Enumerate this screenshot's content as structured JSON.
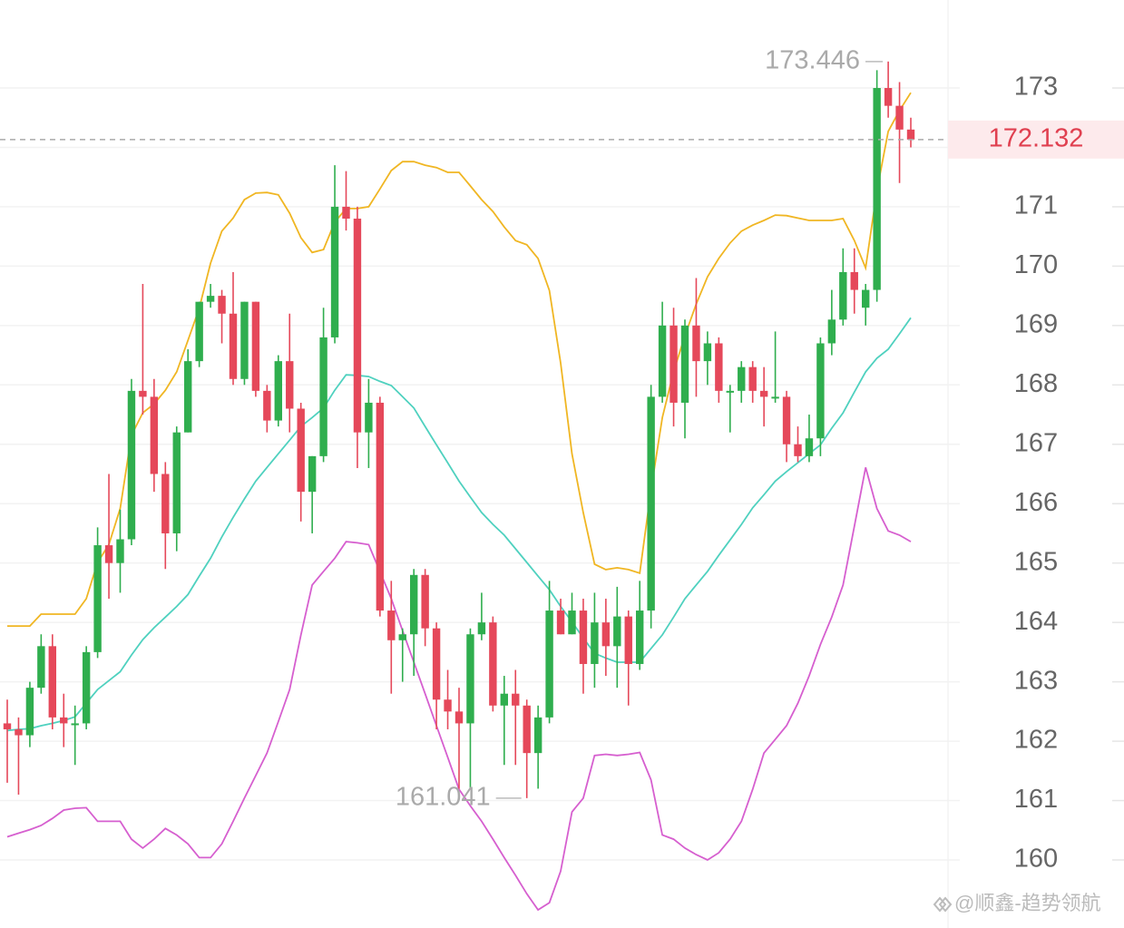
{
  "chart_data": {
    "type": "candlestick",
    "ylim": [
      158.854,
      174.482
    ],
    "yticks": [
      160,
      161,
      162,
      163,
      164,
      165,
      166,
      167,
      168,
      169,
      170,
      171,
      172,
      173
    ],
    "grid": true,
    "up_color": "#2fae4e",
    "down_color": "#e5485a",
    "open": [
      162.3,
      162.2,
      162.1,
      162.9,
      163.6,
      162.4,
      162.3,
      162.3,
      163.5,
      165.3,
      165.0,
      165.4,
      167.9,
      167.8,
      166.5,
      165.5,
      167.2,
      168.4,
      169.4,
      169.5,
      169.2,
      168.1,
      169.4,
      167.9,
      167.4,
      168.4,
      167.6,
      166.2,
      166.8,
      168.8,
      171.0,
      170.8,
      167.2,
      167.7,
      164.2,
      163.7,
      163.8,
      164.8,
      163.9,
      162.7,
      162.5,
      162.3,
      163.8,
      164.0,
      162.6,
      162.8,
      162.6,
      161.8,
      162.4,
      164.2,
      163.8,
      164.2,
      163.3,
      164.0,
      163.6,
      164.1,
      163.3,
      164.2,
      167.8,
      169.0,
      167.7,
      169.0,
      168.4,
      168.7,
      167.9,
      167.9,
      168.3,
      167.9,
      167.8,
      167.8,
      167.0,
      166.8,
      167.1,
      168.7,
      169.1,
      169.9,
      169.3,
      169.6,
      173.0,
      172.7,
      172.3
    ],
    "high": [
      162.7,
      162.4,
      163.0,
      163.8,
      163.8,
      162.8,
      162.6,
      163.6,
      165.6,
      166.5,
      165.9,
      168.1,
      169.7,
      168.1,
      166.7,
      167.3,
      168.6,
      169.4,
      169.7,
      169.6,
      169.9,
      169.4,
      169.4,
      168.0,
      168.5,
      169.2,
      167.7,
      166.8,
      169.3,
      171.7,
      171.6,
      171.0,
      168.1,
      167.8,
      164.7,
      163.9,
      164.9,
      164.9,
      164.0,
      163.2,
      162.9,
      163.9,
      164.5,
      164.1,
      163.1,
      163.2,
      162.7,
      162.6,
      164.7,
      164.4,
      164.5,
      164.4,
      164.5,
      164.4,
      164.6,
      164.2,
      164.7,
      168.0,
      169.4,
      169.3,
      169.1,
      169.8,
      168.9,
      168.8,
      168.0,
      168.4,
      168.4,
      168.3,
      168.9,
      167.9,
      167.3,
      167.5,
      168.8,
      169.6,
      170.3,
      170.3,
      169.7,
      173.3,
      173.446,
      173.1,
      172.5
    ],
    "low": [
      161.3,
      161.1,
      161.9,
      162.8,
      162.2,
      161.9,
      161.6,
      162.2,
      163.4,
      164.4,
      164.5,
      165.3,
      167.5,
      166.2,
      164.9,
      165.2,
      167.2,
      168.3,
      169.3,
      168.7,
      168.0,
      168.0,
      167.8,
      167.2,
      167.3,
      167.2,
      165.7,
      165.5,
      166.7,
      168.7,
      170.6,
      166.6,
      166.6,
      164.1,
      162.8,
      163.0,
      163.1,
      163.6,
      162.2,
      162.2,
      161.2,
      161.2,
      163.7,
      162.5,
      161.6,
      161.6,
      161.041,
      161.2,
      162.3,
      163.8,
      163.8,
      162.8,
      162.9,
      163.1,
      162.9,
      162.6,
      163.2,
      163.9,
      167.7,
      167.3,
      167.1,
      167.8,
      168.0,
      167.7,
      167.2,
      167.7,
      167.7,
      167.3,
      167.7,
      166.7,
      166.7,
      166.7,
      166.8,
      168.5,
      169.0,
      169.2,
      169.0,
      169.4,
      172.5,
      171.4,
      172.0
    ],
    "close": [
      162.2,
      162.1,
      162.9,
      163.6,
      162.4,
      162.3,
      162.3,
      163.5,
      165.3,
      165.0,
      165.4,
      167.9,
      167.8,
      166.5,
      165.5,
      167.2,
      168.4,
      169.4,
      169.5,
      169.2,
      168.1,
      169.4,
      167.9,
      167.4,
      168.4,
      167.6,
      166.2,
      166.8,
      168.8,
      171.0,
      170.8,
      167.2,
      167.7,
      164.2,
      163.7,
      163.8,
      164.8,
      163.9,
      162.7,
      162.5,
      162.3,
      163.8,
      164.0,
      162.6,
      162.8,
      162.6,
      161.8,
      162.4,
      164.2,
      163.8,
      164.2,
      163.3,
      164.0,
      163.6,
      164.1,
      163.3,
      164.2,
      167.8,
      169.0,
      167.7,
      169.0,
      168.4,
      168.7,
      167.9,
      167.9,
      168.3,
      167.9,
      167.8,
      167.8,
      167.0,
      166.8,
      167.1,
      168.7,
      169.1,
      169.9,
      169.6,
      169.6,
      173.0,
      172.7,
      172.3,
      172.132
    ],
    "lines": [
      {
        "color": "#f0b623",
        "values": [
          163.94,
          163.94,
          163.94,
          164.14,
          164.14,
          164.14,
          164.14,
          164.4,
          165.01,
          165.31,
          165.92,
          167.15,
          167.53,
          167.68,
          167.91,
          168.22,
          168.75,
          169.29,
          170.05,
          170.59,
          170.81,
          171.12,
          171.23,
          171.24,
          171.2,
          170.89,
          170.48,
          170.23,
          170.28,
          170.74,
          170.97,
          170.97,
          171.0,
          171.3,
          171.61,
          171.76,
          171.76,
          171.7,
          171.66,
          171.58,
          171.58,
          171.35,
          171.12,
          170.92,
          170.66,
          170.43,
          170.36,
          170.13,
          169.59,
          168.37,
          166.84,
          165.85,
          164.98,
          164.89,
          164.92,
          164.89,
          164.83,
          166.23,
          167.45,
          168.22,
          168.83,
          169.36,
          169.82,
          170.13,
          170.39,
          170.59,
          170.69,
          170.77,
          170.86,
          170.85,
          170.81,
          170.77,
          170.77,
          170.77,
          170.8,
          170.43,
          169.97,
          171.27,
          172.27,
          172.62,
          172.92
        ]
      },
      {
        "color": "#4fd1bf",
        "values": [
          162.18,
          162.2,
          162.21,
          162.26,
          162.3,
          162.35,
          162.41,
          162.64,
          162.87,
          163.02,
          163.17,
          163.45,
          163.71,
          163.91,
          164.09,
          164.27,
          164.47,
          164.78,
          165.08,
          165.44,
          165.77,
          166.08,
          166.38,
          166.61,
          166.84,
          167.07,
          167.3,
          167.45,
          167.61,
          167.91,
          168.17,
          168.16,
          168.14,
          168.06,
          167.99,
          167.8,
          167.61,
          167.3,
          166.99,
          166.69,
          166.38,
          166.11,
          165.85,
          165.65,
          165.47,
          165.24,
          165.01,
          164.78,
          164.55,
          164.27,
          164.01,
          163.74,
          163.48,
          163.4,
          163.33,
          163.33,
          163.33,
          163.56,
          163.79,
          164.09,
          164.4,
          164.63,
          164.86,
          165.13,
          165.39,
          165.65,
          165.93,
          166.15,
          166.38,
          166.54,
          166.69,
          166.84,
          166.99,
          167.27,
          167.53,
          167.88,
          168.22,
          168.45,
          168.6,
          168.86,
          169.13
        ]
      },
      {
        "color": "#d65fcf",
        "values": [
          160.39,
          160.45,
          160.51,
          160.58,
          160.7,
          160.84,
          160.87,
          160.88,
          160.65,
          160.65,
          160.65,
          160.35,
          160.2,
          160.35,
          160.53,
          160.42,
          160.27,
          160.04,
          160.04,
          160.27,
          160.65,
          161.04,
          161.42,
          161.8,
          162.33,
          162.87,
          163.79,
          164.63,
          164.86,
          165.08,
          165.36,
          165.34,
          165.31,
          164.86,
          164.4,
          163.86,
          163.33,
          162.8,
          162.26,
          161.73,
          161.19,
          160.91,
          160.65,
          160.35,
          160.04,
          159.74,
          159.43,
          159.16,
          159.28,
          159.81,
          160.81,
          161.04,
          161.76,
          161.78,
          161.76,
          161.78,
          161.81,
          161.35,
          160.42,
          160.35,
          160.2,
          160.09,
          160.0,
          160.12,
          160.35,
          160.65,
          161.19,
          161.8,
          162.03,
          162.26,
          162.64,
          163.1,
          163.63,
          164.09,
          164.63,
          165.62,
          166.61,
          165.92,
          165.54,
          165.47,
          165.36
        ]
      }
    ],
    "max_marker": 173.446,
    "min_marker": 161.041,
    "last_price": 172.132,
    "watermark": "@顺鑫-趋势领航"
  }
}
